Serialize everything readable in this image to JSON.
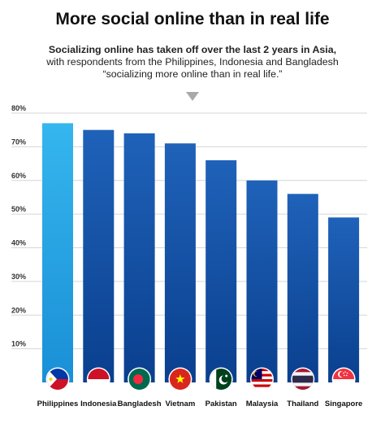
{
  "header": {
    "title": "More social online than in real life",
    "subtitle_line1": "Socializing online has taken off over the last 2 years in Asia,",
    "subtitle_line2": "with respondents from the Philippines, Indonesia and Bangladesh",
    "subtitle_line3": "“socializing more online than in real life.”"
  },
  "chart_data": {
    "type": "bar",
    "categories": [
      "Philippines",
      "Indonesia",
      "Bangladesh",
      "Vietnam",
      "Pakistan",
      "Malaysia",
      "Thailand",
      "Singapore"
    ],
    "values": [
      77,
      75,
      74,
      71,
      66,
      60,
      56,
      49
    ],
    "ylim": [
      0,
      80
    ],
    "yticks": [
      10,
      20,
      30,
      40,
      50,
      60,
      70,
      80
    ],
    "ytick_labels": [
      "10%",
      "20%",
      "30%",
      "40%",
      "50%",
      "60%",
      "70%",
      "80%"
    ],
    "grid": true,
    "colors": {
      "highlight_top": "#35b6ee",
      "highlight_bottom": "#1a8fd6",
      "bar_top": "#1f62b9",
      "bar_bottom": "#0a3f8e",
      "grid": "#d6d6d6"
    },
    "flag_icons": [
      "philippines-flag-icon",
      "indonesia-flag-icon",
      "bangladesh-flag-icon",
      "vietnam-flag-icon",
      "pakistan-flag-icon",
      "malaysia-flag-icon",
      "thailand-flag-icon",
      "singapore-flag-icon"
    ]
  }
}
